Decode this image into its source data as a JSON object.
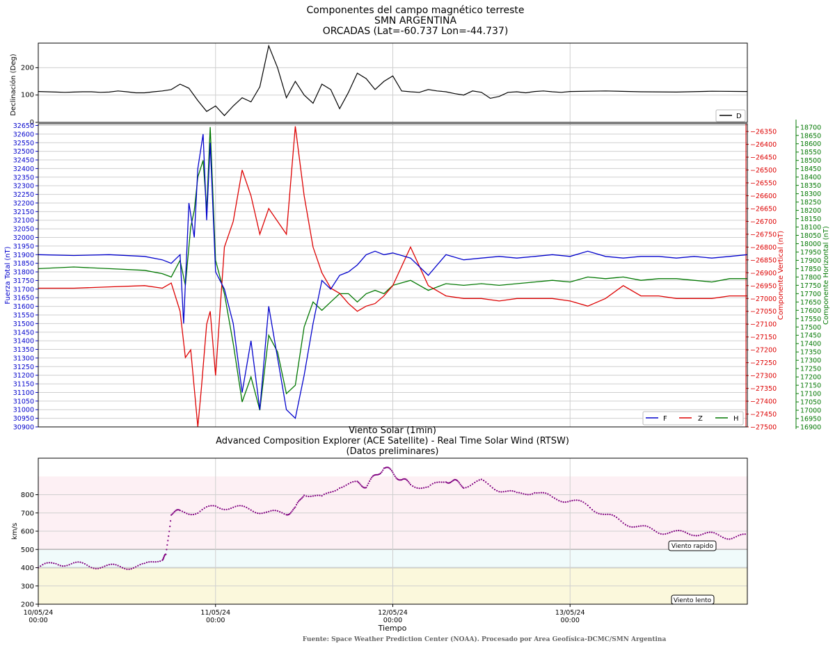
{
  "header": {
    "title_line1": "Componentes del campo magnético terreste",
    "title_line2": "SMN ARGENTINA",
    "title_line3": "ORCADAS (Lat=-60.737 Lon=-44.737)"
  },
  "footer": {
    "source": "Fuente: Space Weather Prediction Center (NOAA). Procesado por Area Geofísica-DCMC/SMN Argentina"
  },
  "colors": {
    "D": "#000000",
    "F": "#0000cc",
    "Z": "#dd0000",
    "H": "#007700",
    "solar": "#800080"
  },
  "chart_data": [
    {
      "type": "line",
      "ylabel": "Declinación (Deg)",
      "ylim": [
        0,
        290
      ],
      "yticks": [
        0,
        100,
        200
      ],
      "legend": "lower-right",
      "grid": true,
      "series": [
        {
          "name": "D",
          "x": [
            0,
            0.05,
            0.1,
            0.15,
            0.2,
            0.25,
            0.3,
            0.35,
            0.4,
            0.45,
            0.5,
            0.55,
            0.6,
            0.65,
            0.7,
            0.75,
            0.8,
            0.85,
            0.9,
            0.95,
            1.0,
            1.05,
            1.1,
            1.15,
            1.2,
            1.25,
            1.3,
            1.35,
            1.4,
            1.45,
            1.5,
            1.55,
            1.6,
            1.65,
            1.7,
            1.75,
            1.8,
            1.85,
            1.9,
            1.95,
            2.0,
            2.05,
            2.1,
            2.15,
            2.2,
            2.25,
            2.3,
            2.35,
            2.4,
            2.45,
            2.5,
            2.55,
            2.6,
            2.65,
            2.7,
            2.75,
            2.8,
            2.85,
            2.9,
            2.95,
            3.0,
            3.2,
            3.4,
            3.6,
            3.8,
            4.0
          ],
          "values": [
            113,
            112,
            111,
            110,
            111,
            112,
            112,
            110,
            111,
            115,
            112,
            108,
            108,
            112,
            115,
            120,
            140,
            125,
            80,
            40,
            60,
            25,
            60,
            90,
            75,
            130,
            280,
            200,
            90,
            150,
            100,
            70,
            140,
            120,
            50,
            110,
            180,
            160,
            120,
            150,
            170,
            115,
            112,
            110,
            120,
            115,
            112,
            105,
            100,
            115,
            110,
            88,
            95,
            110,
            112,
            108,
            113,
            115,
            112,
            110,
            113,
            115,
            112,
            111,
            114,
            113
          ]
        }
      ]
    },
    {
      "type": "line",
      "ylabel_left": "Fuerza Total (nT)",
      "ylabel_right1": "Componente Vertical (nT)",
      "ylabel_right2": "Componente Horizontal (nT)",
      "ylim_F": [
        30900,
        32660
      ],
      "ylim_Z": [
        -27500,
        -26320
      ],
      "ylim_H": [
        16900,
        18720
      ],
      "yticks_F": [
        30900,
        30950,
        31000,
        31050,
        31100,
        31150,
        31200,
        31250,
        31300,
        31350,
        31400,
        31450,
        31500,
        31550,
        31600,
        31650,
        31700,
        31750,
        31800,
        31850,
        31900,
        31950,
        32000,
        32050,
        32100,
        32150,
        32200,
        32250,
        32300,
        32350,
        32400,
        32450,
        32500,
        32550,
        32600,
        32650
      ],
      "yticks_Z": [
        -27500,
        -27450,
        -27400,
        -27350,
        -27300,
        -27250,
        -27200,
        -27150,
        -27100,
        -27050,
        -27000,
        -26950,
        -26900,
        -26850,
        -26800,
        -26750,
        -26700,
        -26650,
        -26600,
        -26550,
        -26500,
        -26450,
        -26400,
        -26350
      ],
      "yticks_H": [
        16900,
        16950,
        17000,
        17050,
        17100,
        17150,
        17200,
        17250,
        17300,
        17350,
        17400,
        17450,
        17500,
        17550,
        17600,
        17650,
        17700,
        17750,
        17800,
        17850,
        17900,
        17950,
        18000,
        18050,
        18100,
        18150,
        18200,
        18250,
        18300,
        18350,
        18400,
        18450,
        18500,
        18550,
        18600,
        18650,
        18700
      ],
      "legend": "lower-right",
      "grid": true,
      "series": [
        {
          "name": "F",
          "axis": "F",
          "x": [
            0,
            0.2,
            0.4,
            0.6,
            0.7,
            0.75,
            0.8,
            0.82,
            0.85,
            0.88,
            0.9,
            0.93,
            0.95,
            0.97,
            1.0,
            1.05,
            1.1,
            1.15,
            1.2,
            1.25,
            1.3,
            1.35,
            1.4,
            1.45,
            1.5,
            1.55,
            1.6,
            1.65,
            1.7,
            1.75,
            1.8,
            1.85,
            1.9,
            1.95,
            2.0,
            2.1,
            2.2,
            2.3,
            2.4,
            2.5,
            2.6,
            2.7,
            2.8,
            2.9,
            3.0,
            3.1,
            3.2,
            3.3,
            3.4,
            3.5,
            3.6,
            3.7,
            3.8,
            3.9,
            4.0
          ],
          "values": [
            31900,
            31895,
            31900,
            31890,
            31870,
            31850,
            31900,
            31500,
            32200,
            32000,
            32400,
            32600,
            32100,
            32550,
            31800,
            31700,
            31500,
            31100,
            31400,
            31000,
            31600,
            31300,
            31000,
            30950,
            31200,
            31500,
            31750,
            31700,
            31780,
            31800,
            31840,
            31900,
            31920,
            31900,
            31910,
            31880,
            31780,
            31900,
            31870,
            31880,
            31890,
            31880,
            31890,
            31900,
            31890,
            31920,
            31890,
            31880,
            31890,
            31890,
            31880,
            31890,
            31880,
            31890,
            31900
          ]
        },
        {
          "name": "Z",
          "axis": "Z",
          "x": [
            0,
            0.2,
            0.4,
            0.6,
            0.7,
            0.75,
            0.8,
            0.83,
            0.86,
            0.88,
            0.9,
            0.92,
            0.95,
            0.97,
            1.0,
            1.05,
            1.1,
            1.15,
            1.2,
            1.25,
            1.3,
            1.35,
            1.4,
            1.45,
            1.5,
            1.55,
            1.6,
            1.65,
            1.7,
            1.75,
            1.8,
            1.85,
            1.9,
            1.95,
            2.0,
            2.1,
            2.2,
            2.3,
            2.4,
            2.5,
            2.6,
            2.7,
            2.8,
            2.9,
            3.0,
            3.1,
            3.2,
            3.3,
            3.4,
            3.5,
            3.6,
            3.7,
            3.8,
            3.9,
            4.0
          ],
          "values": [
            -26960,
            -26960,
            -26955,
            -26950,
            -26960,
            -26940,
            -27050,
            -27230,
            -27200,
            -27350,
            -27500,
            -27350,
            -27100,
            -27050,
            -27300,
            -26800,
            -26700,
            -26500,
            -26600,
            -26750,
            -26650,
            -26700,
            -26750,
            -26330,
            -26600,
            -26800,
            -26900,
            -26960,
            -26980,
            -27020,
            -27050,
            -27030,
            -27020,
            -26990,
            -26950,
            -26800,
            -26950,
            -26990,
            -27000,
            -27000,
            -27010,
            -27000,
            -27000,
            -27000,
            -27010,
            -27030,
            -27000,
            -26950,
            -26990,
            -26990,
            -27000,
            -27000,
            -27000,
            -26990,
            -26990
          ]
        },
        {
          "name": "H",
          "axis": "H",
          "x": [
            0,
            0.2,
            0.4,
            0.6,
            0.7,
            0.75,
            0.8,
            0.83,
            0.86,
            0.88,
            0.9,
            0.93,
            0.95,
            0.97,
            1.0,
            1.05,
            1.1,
            1.15,
            1.2,
            1.25,
            1.3,
            1.35,
            1.4,
            1.45,
            1.5,
            1.55,
            1.6,
            1.65,
            1.7,
            1.75,
            1.8,
            1.85,
            1.9,
            1.95,
            2.0,
            2.1,
            2.2,
            2.3,
            2.4,
            2.5,
            2.6,
            2.7,
            2.8,
            2.9,
            3.0,
            3.1,
            3.2,
            3.3,
            3.4,
            3.5,
            3.6,
            3.7,
            3.8,
            3.9,
            4.0
          ],
          "values": [
            17850,
            17860,
            17850,
            17840,
            17820,
            17800,
            17900,
            17750,
            18100,
            18200,
            18400,
            18500,
            18200,
            18700,
            17900,
            17700,
            17400,
            17050,
            17200,
            17000,
            17450,
            17350,
            17100,
            17150,
            17500,
            17650,
            17600,
            17650,
            17700,
            17700,
            17650,
            17700,
            17720,
            17700,
            17750,
            17780,
            17720,
            17760,
            17750,
            17760,
            17750,
            17760,
            17770,
            17780,
            17770,
            17800,
            17790,
            17800,
            17780,
            17790,
            17790,
            17780,
            17770,
            17790,
            17790
          ]
        }
      ]
    },
    {
      "type": "scatter",
      "title_line1": "Viento Solar (1min)",
      "title_line2": "Advanced Composition Explorer (ACE Satellite) - Real Time Solar Wind (RTSW)",
      "title_line3": "(Datos preliminares)",
      "xlabel": "Tiempo",
      "ylabel": "km/s",
      "ylim": [
        200,
        1000
      ],
      "yticks": [
        200,
        300,
        400,
        500,
        600,
        700,
        800
      ],
      "xtick_labels": [
        {
          "date": "10/05/24",
          "time": "00:00"
        },
        {
          "date": "11/05/24",
          "time": "00:00"
        },
        {
          "date": "12/05/24",
          "time": "00:00"
        },
        {
          "date": "13/05/24",
          "time": "00:00"
        }
      ],
      "bands": [
        {
          "from": 200,
          "to": 400,
          "color": "#fbf8dc",
          "label": "Viento lento"
        },
        {
          "from": 400,
          "to": 500,
          "color": "#f0fbfb",
          "label": ""
        },
        {
          "from": 500,
          "to": 900,
          "color": "#fdf0f4",
          "label": "Viento rapido"
        }
      ],
      "series": [
        {
          "name": "Viento solar",
          "x": [
            0,
            0.1,
            0.2,
            0.3,
            0.4,
            0.5,
            0.6,
            0.7,
            0.72,
            0.75,
            0.8,
            0.9,
            1.0,
            1.1,
            1.2,
            1.3,
            1.4,
            1.45,
            1.5,
            1.6,
            1.7,
            1.8,
            1.85,
            1.9,
            1.95,
            2.0,
            2.05,
            2.1,
            2.2,
            2.3,
            2.35,
            2.4,
            2.5,
            2.6,
            2.7,
            2.8,
            2.9,
            3.0,
            3.1,
            3.2,
            3.3,
            3.4,
            3.5,
            3.6,
            3.7,
            3.8,
            3.9,
            4.0
          ],
          "values": [
            400,
            425,
            420,
            410,
            405,
            405,
            410,
            455,
            460,
            700,
            705,
            705,
            735,
            730,
            720,
            700,
            700,
            720,
            810,
            780,
            850,
            860,
            850,
            900,
            950,
            920,
            880,
            860,
            835,
            880,
            870,
            850,
            870,
            830,
            800,
            820,
            780,
            770,
            740,
            690,
            650,
            620,
            600,
            590,
            590,
            580,
            570,
            570
          ]
        }
      ]
    }
  ]
}
